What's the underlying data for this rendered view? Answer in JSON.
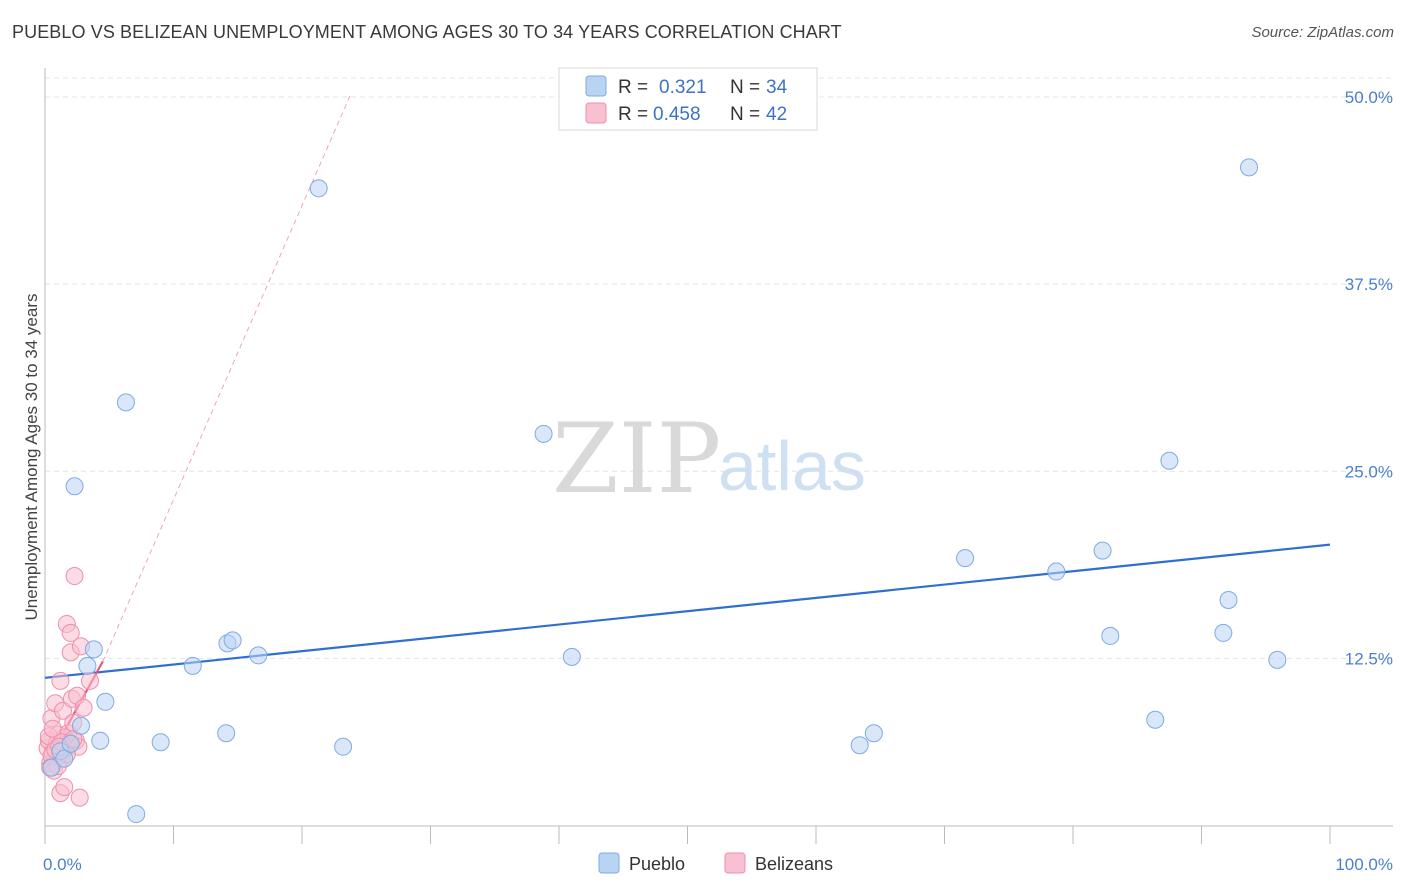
{
  "header": {
    "title": "PUEBLO VS BELIZEAN UNEMPLOYMENT AMONG AGES 30 TO 34 YEARS CORRELATION CHART",
    "source": "Source: ZipAtlas.com"
  },
  "watermark": {
    "zip": "ZIP",
    "atlas": "atlas"
  },
  "legend_top": {
    "r_label": "R =",
    "n_label": "N =",
    "rows": [
      {
        "series": "Pueblo",
        "r": "0.321",
        "n": "34"
      },
      {
        "series": "Belizeans",
        "r": "0.458",
        "n": "42"
      }
    ]
  },
  "colors": {
    "pueblo_fill": "#b9d3f3",
    "pueblo_stroke": "#7eaae6",
    "pueblo_line": "#2f6fd0",
    "belize_fill": "#f8c0d0",
    "belize_stroke": "#ef8fac",
    "belize_line": "#e8567f",
    "grid": "#e4e4e4",
    "tick_label": "#4a7fd0"
  },
  "chart_data": {
    "type": "scatter",
    "title": "PUEBLO VS BELIZEAN UNEMPLOYMENT AMONG AGES 30 TO 34 YEARS CORRELATION CHART",
    "xlabel": "",
    "ylabel": "Unemployment Among Ages 30 to 34 years",
    "xlim": [
      0,
      100
    ],
    "ylim": [
      0,
      52
    ],
    "x_tick_labels": [
      "0.0%",
      "100.0%"
    ],
    "y_ticks": [
      12.5,
      25.0,
      37.5,
      50.0
    ],
    "y_tick_labels": [
      "12.5%",
      "25.0%",
      "37.5%",
      "50.0%"
    ],
    "grid": true,
    "legend_position": "bottom-center",
    "series": [
      {
        "name": "Pueblo",
        "points": [
          [
            0.5,
            5.2
          ],
          [
            1.2,
            6.3
          ],
          [
            1.5,
            5.8
          ],
          [
            2.0,
            6.8
          ],
          [
            2.3,
            24.0
          ],
          [
            2.8,
            8.0
          ],
          [
            3.3,
            12.0
          ],
          [
            3.8,
            13.1
          ],
          [
            4.3,
            7.0
          ],
          [
            4.7,
            9.6
          ],
          [
            6.3,
            29.6
          ],
          [
            7.1,
            2.1
          ],
          [
            9.0,
            6.9
          ],
          [
            11.5,
            12.0
          ],
          [
            14.1,
            7.5
          ],
          [
            14.2,
            13.5
          ],
          [
            14.6,
            13.7
          ],
          [
            16.6,
            12.7
          ],
          [
            21.3,
            43.9
          ],
          [
            23.2,
            6.6
          ],
          [
            38.8,
            27.5
          ],
          [
            41.0,
            12.6
          ],
          [
            63.4,
            6.7
          ],
          [
            64.5,
            7.5
          ],
          [
            71.6,
            19.2
          ],
          [
            78.7,
            18.3
          ],
          [
            82.3,
            19.7
          ],
          [
            82.9,
            14.0
          ],
          [
            86.4,
            8.4
          ],
          [
            87.5,
            25.7
          ],
          [
            91.7,
            14.2
          ],
          [
            92.1,
            16.4
          ],
          [
            93.7,
            45.3
          ],
          [
            95.9,
            12.4
          ]
        ],
        "trend": {
          "x": [
            0,
            100
          ],
          "y": [
            11.2,
            20.1
          ]
        }
      },
      {
        "name": "Belizeans",
        "points": [
          [
            0.2,
            6.5
          ],
          [
            0.3,
            7.0
          ],
          [
            0.4,
            5.5
          ],
          [
            0.5,
            8.5
          ],
          [
            0.6,
            6.2
          ],
          [
            0.7,
            5.0
          ],
          [
            0.8,
            9.5
          ],
          [
            0.9,
            6.8
          ],
          [
            1.0,
            7.4
          ],
          [
            1.1,
            6.0
          ],
          [
            1.2,
            11.0
          ],
          [
            1.2,
            3.5
          ],
          [
            1.3,
            5.8
          ],
          [
            1.4,
            9.0
          ],
          [
            1.5,
            7.2
          ],
          [
            1.5,
            3.9
          ],
          [
            1.6,
            6.5
          ],
          [
            1.7,
            14.8
          ],
          [
            1.8,
            7.5
          ],
          [
            1.9,
            6.9
          ],
          [
            2.0,
            12.9
          ],
          [
            2.0,
            14.2
          ],
          [
            2.1,
            9.8
          ],
          [
            2.2,
            8.2
          ],
          [
            2.3,
            18.0
          ],
          [
            2.4,
            7.0
          ],
          [
            2.5,
            10.0
          ],
          [
            2.6,
            6.6
          ],
          [
            2.7,
            3.2
          ],
          [
            2.8,
            13.3
          ],
          [
            3.0,
            9.2
          ],
          [
            3.5,
            11.0
          ],
          [
            0.3,
            7.3
          ],
          [
            0.5,
            6.0
          ],
          [
            0.6,
            7.8
          ],
          [
            0.8,
            6.4
          ],
          [
            1.0,
            5.3
          ],
          [
            1.3,
            6.9
          ],
          [
            1.7,
            6.1
          ],
          [
            2.2,
            7.1
          ],
          [
            0.4,
            5.2
          ],
          [
            1.1,
            6.6
          ]
        ],
        "trend": {
          "x": [
            0.2,
            4.5
          ],
          "y": [
            5.6,
            12.3
          ]
        },
        "trend_extension": {
          "x": [
            4.5,
            23.8
          ],
          "y": [
            12.3,
            50.2
          ]
        }
      }
    ]
  },
  "bottom_legend": [
    {
      "label": "Pueblo"
    },
    {
      "label": "Belizeans"
    }
  ]
}
